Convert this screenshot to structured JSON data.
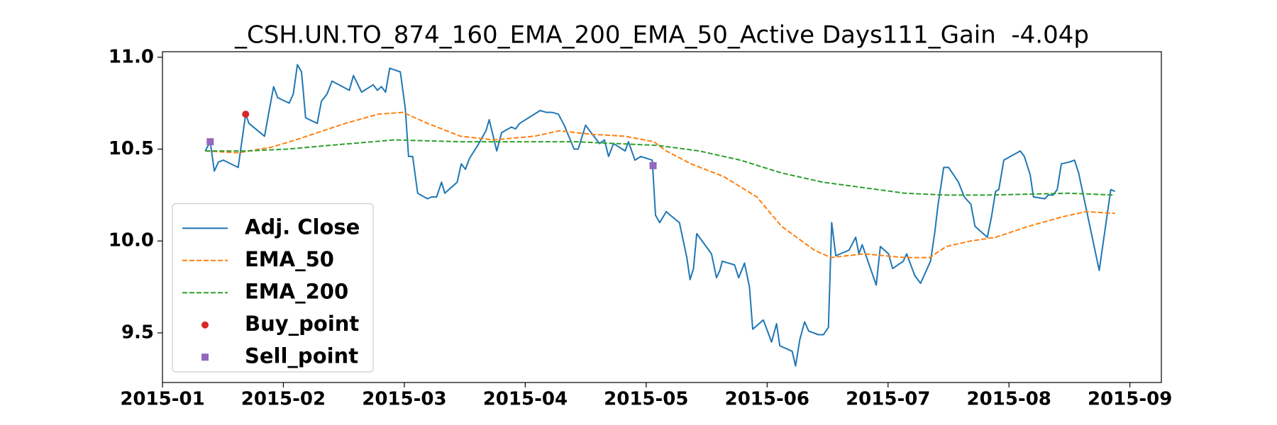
{
  "chart_data": {
    "type": "line",
    "title": "_CSH.UN.TO_874_160_EMA_200_EMA_50_Active Days111_Gain  -4.04p",
    "xlim": [
      1,
      9.26
    ],
    "ylim": [
      9.23,
      11.03
    ],
    "xticks": [
      {
        "value": 1,
        "label": "2015-01"
      },
      {
        "value": 2,
        "label": "2015-02"
      },
      {
        "value": 3,
        "label": "2015-03"
      },
      {
        "value": 4,
        "label": "2015-04"
      },
      {
        "value": 5,
        "label": "2015-05"
      },
      {
        "value": 6,
        "label": "2015-06"
      },
      {
        "value": 7,
        "label": "2015-07"
      },
      {
        "value": 8,
        "label": "2015-08"
      },
      {
        "value": 9,
        "label": "2015-09"
      }
    ],
    "yticks": [
      9.5,
      {
        "value": 10,
        "label": "10.0"
      },
      10.5,
      {
        "value": 11,
        "label": "11.0"
      }
    ],
    "legend": "lower left",
    "series": [
      {
        "name": "Adj. Close",
        "color": "#1f77b4",
        "style": "solid",
        "x": [
          1.354,
          1.395,
          1.429,
          1.463,
          1.504,
          1.626,
          1.688,
          1.715,
          1.844,
          1.885,
          1.919,
          1.953,
          2.048,
          2.082,
          2.116,
          2.15,
          2.184,
          2.28,
          2.314,
          2.361,
          2.402,
          2.545,
          2.579,
          2.647,
          2.743,
          2.777,
          2.811,
          2.845,
          2.879,
          2.967,
          3.008,
          3.035,
          3.069,
          3.11,
          3.192,
          3.226,
          3.267,
          3.308,
          3.335,
          3.437,
          3.471,
          3.505,
          3.539,
          3.607,
          3.675,
          3.702,
          3.764,
          3.804,
          3.886,
          3.92,
          3.954,
          4.124,
          4.172,
          4.22,
          4.274,
          4.322,
          4.404,
          4.438,
          4.499,
          4.567,
          4.615,
          4.655,
          4.689,
          4.73,
          4.826,
          4.853,
          4.907,
          4.955,
          5.05,
          5.077,
          5.112,
          5.166,
          5.2,
          5.275,
          5.336,
          5.363,
          5.391,
          5.418,
          5.54,
          5.581,
          5.609,
          5.629,
          5.731,
          5.765,
          5.813,
          5.854,
          5.881,
          5.969,
          6.037,
          6.078,
          6.105,
          6.207,
          6.235,
          6.269,
          6.31,
          6.344,
          6.425,
          6.466,
          6.507,
          6.534,
          6.568,
          6.677,
          6.732,
          6.759,
          6.786,
          6.902,
          6.936,
          7.004,
          7.038,
          7.126,
          7.154,
          7.222,
          7.269,
          7.351,
          7.385,
          7.412,
          7.46,
          7.501,
          7.582,
          7.63,
          7.685,
          7.719,
          7.821,
          7.855,
          7.889,
          7.916,
          7.957,
          8.093,
          8.127,
          8.175,
          8.202,
          8.297,
          8.325,
          8.365,
          8.399,
          8.433,
          8.501,
          8.542,
          8.576,
          8.624,
          8.746,
          8.842,
          8.876
        ],
        "values": [
          10.49,
          10.54,
          10.38,
          10.43,
          10.44,
          10.4,
          10.69,
          10.64,
          10.57,
          10.72,
          10.84,
          10.78,
          10.75,
          10.8,
          10.96,
          10.92,
          10.67,
          10.64,
          10.76,
          10.8,
          10.87,
          10.82,
          10.9,
          10.81,
          10.85,
          10.82,
          10.84,
          10.81,
          10.94,
          10.92,
          10.72,
          10.46,
          10.46,
          10.26,
          10.23,
          10.24,
          10.24,
          10.32,
          10.26,
          10.32,
          10.42,
          10.39,
          10.45,
          10.52,
          10.6,
          10.66,
          10.49,
          10.59,
          10.62,
          10.61,
          10.64,
          10.71,
          10.7,
          10.7,
          10.69,
          10.63,
          10.5,
          10.5,
          10.63,
          10.57,
          10.53,
          10.55,
          10.46,
          10.53,
          10.49,
          10.54,
          10.44,
          10.46,
          10.44,
          10.14,
          10.1,
          10.16,
          10.14,
          10.1,
          9.91,
          9.79,
          9.85,
          10.04,
          9.93,
          9.8,
          9.84,
          9.89,
          9.87,
          9.8,
          9.88,
          9.75,
          9.52,
          9.57,
          9.45,
          9.55,
          9.43,
          9.4,
          9.32,
          9.46,
          9.56,
          9.51,
          9.49,
          9.49,
          9.53,
          10.1,
          9.92,
          9.95,
          10.02,
          9.93,
          9.98,
          9.76,
          9.97,
          9.93,
          9.85,
          9.89,
          9.93,
          9.81,
          9.77,
          9.89,
          10.04,
          10.19,
          10.4,
          10.4,
          10.32,
          10.24,
          10.2,
          10.08,
          10.02,
          10.13,
          10.27,
          10.28,
          10.44,
          10.49,
          10.46,
          10.36,
          10.24,
          10.23,
          10.25,
          10.25,
          10.28,
          10.42,
          10.43,
          10.44,
          10.37,
          10.22,
          9.84,
          10.28,
          10.27
        ]
      },
      {
        "name": "EMA_50",
        "color": "#ff7f0e",
        "style": "dashed",
        "x": [
          1.354,
          1.626,
          1.899,
          2.103,
          2.239,
          2.511,
          2.783,
          2.988,
          3.192,
          3.464,
          3.736,
          4.077,
          4.281,
          4.553,
          4.826,
          5.064,
          5.166,
          5.37,
          5.643,
          5.915,
          6.119,
          6.391,
          6.527,
          6.8,
          7.14,
          7.344,
          7.481,
          7.685,
          7.889,
          8.161,
          8.433,
          8.638,
          8.876
        ],
        "values": [
          10.49,
          10.48,
          10.51,
          10.55,
          10.58,
          10.64,
          10.69,
          10.7,
          10.64,
          10.57,
          10.55,
          10.57,
          10.6,
          10.58,
          10.57,
          10.54,
          10.49,
          10.42,
          10.35,
          10.24,
          10.08,
          9.95,
          9.91,
          9.93,
          9.91,
          9.91,
          9.97,
          10.0,
          10.02,
          10.08,
          10.13,
          10.16,
          10.15
        ]
      },
      {
        "name": "EMA_200",
        "color": "#2ca02c",
        "style": "dashed",
        "x": [
          1.354,
          1.694,
          2.035,
          2.375,
          2.92,
          3.464,
          4.417,
          5.098,
          5.438,
          5.779,
          6.119,
          6.46,
          6.8,
          7.14,
          7.481,
          7.821,
          8.501,
          8.876
        ],
        "values": [
          10.49,
          10.49,
          10.5,
          10.52,
          10.55,
          10.54,
          10.54,
          10.52,
          10.49,
          10.44,
          10.37,
          10.32,
          10.29,
          10.26,
          10.25,
          10.25,
          10.26,
          10.25
        ]
      },
      {
        "name": "Buy_point",
        "color": "#d62728",
        "style": "marker",
        "marker": "circle",
        "x": [
          1.688
        ],
        "values": [
          10.69
        ]
      },
      {
        "name": "Sell_point",
        "color": "#9467bd",
        "style": "marker",
        "marker": "square",
        "x": [
          1.395,
          5.057
        ],
        "values": [
          10.54,
          10.41
        ]
      }
    ]
  }
}
